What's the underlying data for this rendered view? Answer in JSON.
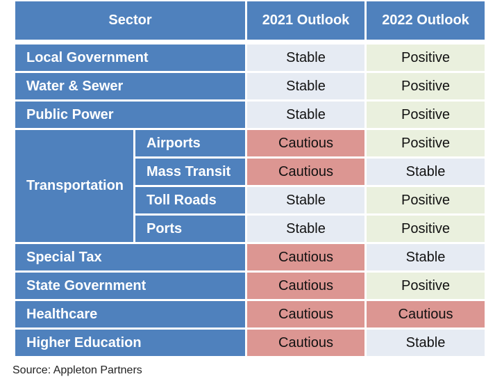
{
  "headers": {
    "sector": "Sector",
    "y2021": "2021 Outlook",
    "y2022": "2022 Outlook"
  },
  "rows": [
    {
      "sector": "Local Government",
      "y2021": "Stable",
      "y2022": "Positive"
    },
    {
      "sector": "Water & Sewer",
      "y2021": "Stable",
      "y2022": "Positive"
    },
    {
      "sector": "Public Power",
      "y2021": "Stable",
      "y2022": "Positive"
    }
  ],
  "transportation": {
    "label": "Transportation",
    "subs": [
      {
        "name": "Airports",
        "y2021": "Cautious",
        "y2022": "Positive"
      },
      {
        "name": "Mass Transit",
        "y2021": "Cautious",
        "y2022": "Stable"
      },
      {
        "name": "Toll Roads",
        "y2021": "Stable",
        "y2022": "Positive"
      },
      {
        "name": "Ports",
        "y2021": "Stable",
        "y2022": "Positive"
      }
    ]
  },
  "rows_after": [
    {
      "sector": "Special Tax",
      "y2021": "Cautious",
      "y2022": "Stable"
    },
    {
      "sector": "State Government",
      "y2021": "Cautious",
      "y2022": "Positive"
    },
    {
      "sector": "Healthcare",
      "y2021": "Cautious",
      "y2022": "Cautious"
    },
    {
      "sector": "Higher Education",
      "y2021": "Cautious",
      "y2022": "Stable"
    }
  ],
  "colors": {
    "header": "#4f81bd",
    "stable": "#e6ebf3",
    "positive": "#eaf0de",
    "cautious": "#dc9692"
  },
  "source": "Source: Appleton Partners"
}
